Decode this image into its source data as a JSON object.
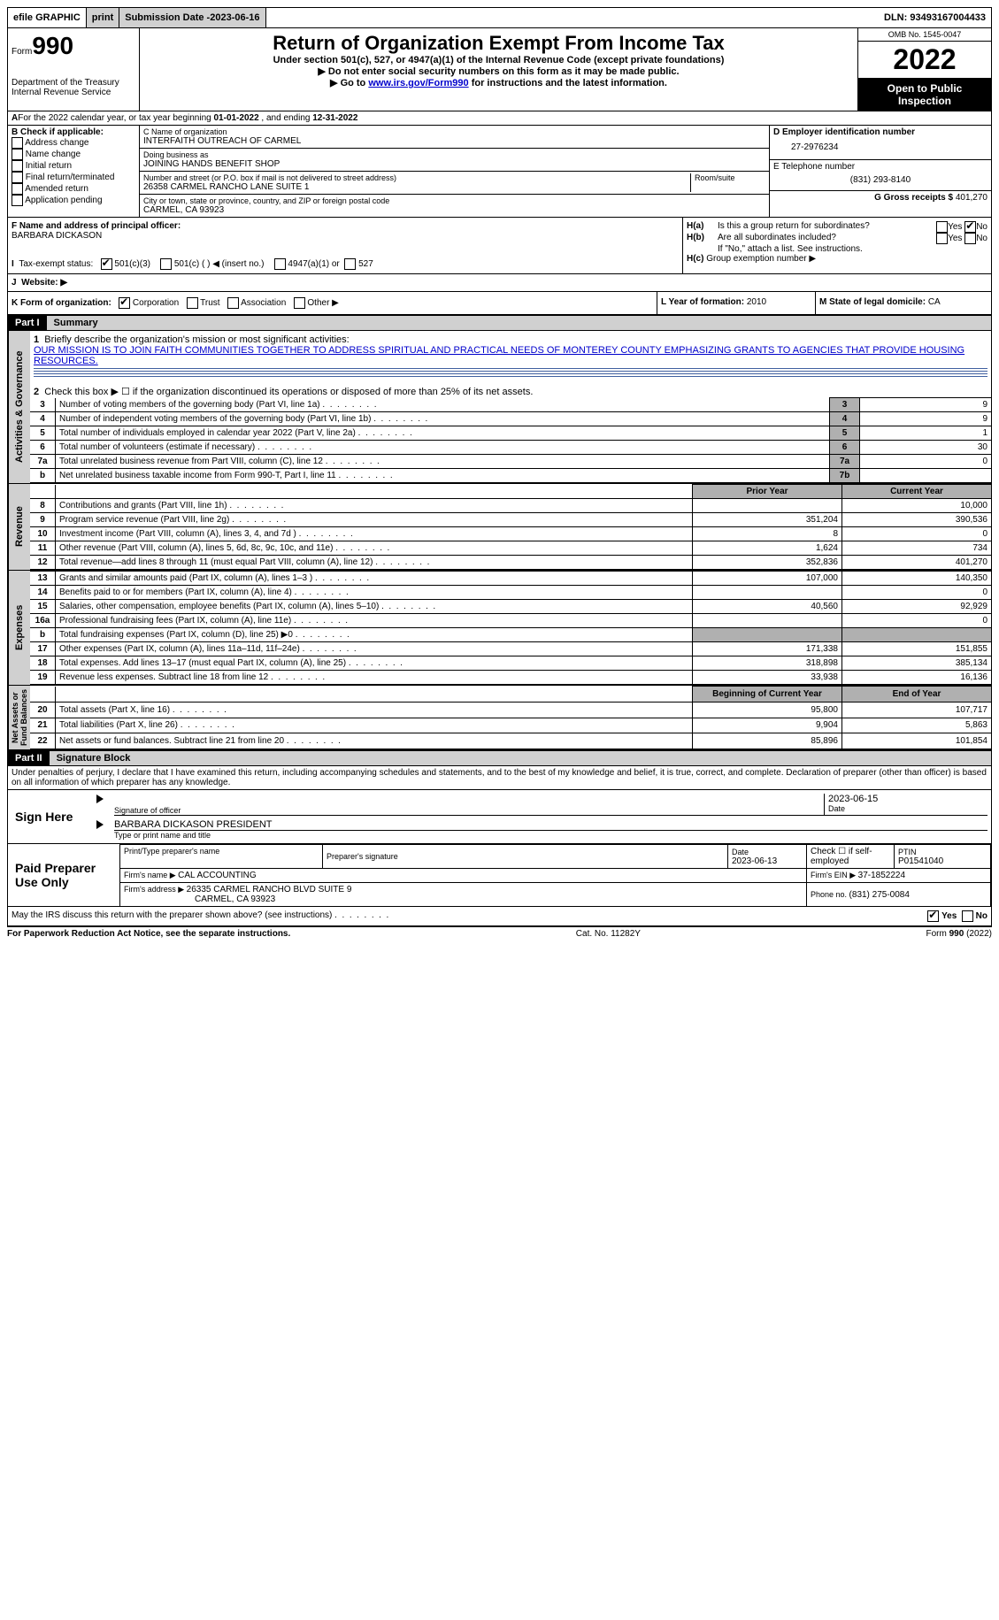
{
  "topbar": {
    "efile": "efile GRAPHIC",
    "print": "print",
    "sub_label": "Submission Date - ",
    "sub_date": "2023-06-16",
    "dln_label": "DLN: ",
    "dln": "93493167004433"
  },
  "header": {
    "form_word": "Form",
    "form_num": "990",
    "title": "Return of Organization Exempt From Income Tax",
    "subtitle": "Under section 501(c), 527, or 4947(a)(1) of the Internal Revenue Code (except private foundations)",
    "note1": "▶ Do not enter social security numbers on this form as it may be made public.",
    "note2_pre": "▶ Go to ",
    "note2_link": "www.irs.gov/Form990",
    "note2_post": " for instructions and the latest information.",
    "dept": "Department of the Treasury\nInternal Revenue Service",
    "omb": "OMB No. 1545-0047",
    "year": "2022",
    "open": "Open to Public Inspection"
  },
  "lineA": {
    "text_pre": "For the 2022 calendar year, or tax year beginning ",
    "begin": "01-01-2022",
    "mid": " , and ending ",
    "end": "12-31-2022"
  },
  "B": {
    "label": "B Check if applicable:",
    "opts": [
      "Address change",
      "Name change",
      "Initial return",
      "Final return/terminated",
      "Amended return",
      "Application pending"
    ]
  },
  "C": {
    "name_label": "C Name of organization",
    "name": "INTERFAITH OUTREACH OF CARMEL",
    "dba_label": "Doing business as",
    "dba": "JOINING HANDS BENEFIT SHOP",
    "addr_label": "Number and street (or P.O. box if mail is not delivered to street address)",
    "room_label": "Room/suite",
    "addr": "26358 CARMEL RANCHO LANE SUITE 1",
    "city_label": "City or town, state or province, country, and ZIP or foreign postal code",
    "city": "CARMEL, CA  93923"
  },
  "D": {
    "label": "D Employer identification number",
    "val": "27-2976234"
  },
  "E": {
    "label": "E Telephone number",
    "val": "(831) 293-8140"
  },
  "G": {
    "label": "G Gross receipts $ ",
    "val": "401,270"
  },
  "F": {
    "label": "F  Name and address of principal officer:",
    "val": "BARBARA DICKASON"
  },
  "H": {
    "a": "Is this a group return for subordinates?",
    "b": "Are all subordinates included?",
    "note": "If \"No,\" attach a list. See instructions.",
    "c": "Group exemption number ▶",
    "yes": "Yes",
    "no": "No"
  },
  "I": {
    "label": "Tax-exempt status:",
    "o1": "501(c)(3)",
    "o2": "501(c) (  ) ◀ (insert no.)",
    "o3": "4947(a)(1) or",
    "o4": "527"
  },
  "J": {
    "label": "Website: ▶"
  },
  "K": {
    "label": "K Form of organization:",
    "o1": "Corporation",
    "o2": "Trust",
    "o3": "Association",
    "o4": "Other ▶"
  },
  "L": {
    "label": "L Year of formation: ",
    "val": "2010"
  },
  "M": {
    "label": "M State of legal domicile: ",
    "val": "CA"
  },
  "part1": {
    "hdr": "Part I",
    "title": "Summary"
  },
  "summary": {
    "l1_label": "Briefly describe the organization's mission or most significant activities:",
    "l1_text": "OUR MISSION IS TO JOIN FAITH COMMUNITIES TOGETHER TO ADDRESS SPIRITUAL AND PRACTICAL NEEDS OF MONTEREY COUNTY EMPHASIZING GRANTS TO AGENCIES THAT PROVIDE HOUSING RESOURCES.",
    "l2": "Check this box ▶ ☐  if the organization discontinued its operations or disposed of more than 25% of its net assets.",
    "rows_top": [
      {
        "n": "3",
        "t": "Number of voting members of the governing body (Part VI, line 1a)",
        "box": "3",
        "v": "9"
      },
      {
        "n": "4",
        "t": "Number of independent voting members of the governing body (Part VI, line 1b)",
        "box": "4",
        "v": "9"
      },
      {
        "n": "5",
        "t": "Total number of individuals employed in calendar year 2022 (Part V, line 2a)",
        "box": "5",
        "v": "1"
      },
      {
        "n": "6",
        "t": "Total number of volunteers (estimate if necessary)",
        "box": "6",
        "v": "30"
      },
      {
        "n": "7a",
        "t": "Total unrelated business revenue from Part VIII, column (C), line 12",
        "box": "7a",
        "v": "0"
      },
      {
        "n": "b",
        "t": "Net unrelated business taxable income from Form 990-T, Part I, line 11",
        "box": "7b",
        "v": ""
      }
    ],
    "prior_hdr": "Prior Year",
    "curr_hdr": "Current Year",
    "rev_rows": [
      {
        "n": "8",
        "t": "Contributions and grants (Part VIII, line 1h)",
        "p": "",
        "c": "10,000"
      },
      {
        "n": "9",
        "t": "Program service revenue (Part VIII, line 2g)",
        "p": "351,204",
        "c": "390,536"
      },
      {
        "n": "10",
        "t": "Investment income (Part VIII, column (A), lines 3, 4, and 7d )",
        "p": "8",
        "c": "0"
      },
      {
        "n": "11",
        "t": "Other revenue (Part VIII, column (A), lines 5, 6d, 8c, 9c, 10c, and 11e)",
        "p": "1,624",
        "c": "734"
      },
      {
        "n": "12",
        "t": "Total revenue—add lines 8 through 11 (must equal Part VIII, column (A), line 12)",
        "p": "352,836",
        "c": "401,270"
      }
    ],
    "exp_rows": [
      {
        "n": "13",
        "t": "Grants and similar amounts paid (Part IX, column (A), lines 1–3 )",
        "p": "107,000",
        "c": "140,350"
      },
      {
        "n": "14",
        "t": "Benefits paid to or for members (Part IX, column (A), line 4)",
        "p": "",
        "c": "0"
      },
      {
        "n": "15",
        "t": "Salaries, other compensation, employee benefits (Part IX, column (A), lines 5–10)",
        "p": "40,560",
        "c": "92,929"
      },
      {
        "n": "16a",
        "t": "Professional fundraising fees (Part IX, column (A), line 11e)",
        "p": "",
        "c": "0"
      },
      {
        "n": "b",
        "t": "Total fundraising expenses (Part IX, column (D), line 25) ▶0",
        "p": "GREY",
        "c": "GREY"
      },
      {
        "n": "17",
        "t": "Other expenses (Part IX, column (A), lines 11a–11d, 11f–24e)",
        "p": "171,338",
        "c": "151,855"
      },
      {
        "n": "18",
        "t": "Total expenses. Add lines 13–17 (must equal Part IX, column (A), line 25)",
        "p": "318,898",
        "c": "385,134"
      },
      {
        "n": "19",
        "t": "Revenue less expenses. Subtract line 18 from line 12",
        "p": "33,938",
        "c": "16,136"
      }
    ],
    "bal_hdr1": "Beginning of Current Year",
    "bal_hdr2": "End of Year",
    "bal_rows": [
      {
        "n": "20",
        "t": "Total assets (Part X, line 16)",
        "p": "95,800",
        "c": "107,717"
      },
      {
        "n": "21",
        "t": "Total liabilities (Part X, line 26)",
        "p": "9,904",
        "c": "5,863"
      },
      {
        "n": "22",
        "t": "Net assets or fund balances. Subtract line 21 from line 20",
        "p": "85,896",
        "c": "101,854"
      }
    ],
    "vlabels": {
      "ag": "Activities & Governance",
      "rev": "Revenue",
      "exp": "Expenses",
      "net": "Net Assets or\nFund Balances"
    }
  },
  "part2": {
    "hdr": "Part II",
    "title": "Signature Block"
  },
  "sig": {
    "perjury": "Under penalties of perjury, I declare that I have examined this return, including accompanying schedules and statements, and to the best of my knowledge and belief, it is true, correct, and complete. Declaration of preparer (other than officer) is based on all information of which preparer has any knowledge.",
    "sign_here": "Sign Here",
    "sig_officer": "Signature of officer",
    "date_val": "2023-06-15",
    "date_label": "Date",
    "name_val": "BARBARA DICKASON  PRESIDENT",
    "name_label": "Type or print name and title",
    "paid": "Paid Preparer Use Only",
    "prep_name_label": "Print/Type preparer's name",
    "prep_sig_label": "Preparer's signature",
    "prep_date_label": "Date",
    "prep_date": "2023-06-13",
    "self_emp": "Check ☐ if self-employed",
    "ptin_label": "PTIN",
    "ptin": "P01541040",
    "firm_name_label": "Firm's name    ▶ ",
    "firm_name": "CAL ACCOUNTING",
    "firm_ein_label": "Firm's EIN ▶ ",
    "firm_ein": "37-1852224",
    "firm_addr_label": "Firm's address ▶ ",
    "firm_addr1": "26335 CARMEL RANCHO BLVD SUITE 9",
    "firm_addr2": "CARMEL, CA  93923",
    "firm_phone_label": "Phone no. ",
    "firm_phone": "(831) 275-0084",
    "discuss": "May the IRS discuss this return with the preparer shown above? (see instructions)"
  },
  "footer": {
    "left": "For Paperwork Reduction Act Notice, see the separate instructions.",
    "mid": "Cat. No. 11282Y",
    "right": "Form 990 (2022)"
  }
}
